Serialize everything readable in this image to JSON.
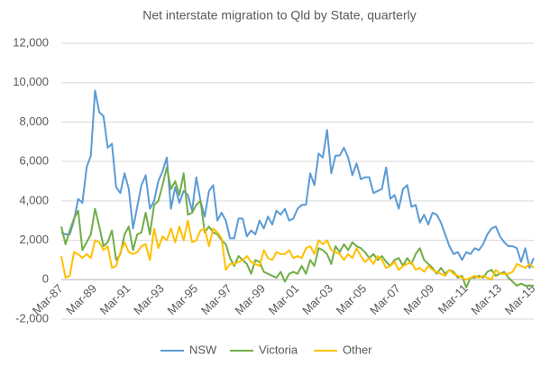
{
  "chart_data": {
    "type": "line",
    "title": "Net interstate migration to Qld by State, quarterly",
    "categories": [
      "Mar-87",
      null,
      null,
      null,
      null,
      null,
      null,
      null,
      "Mar-89",
      null,
      null,
      null,
      null,
      null,
      null,
      null,
      "Mar-91",
      null,
      null,
      null,
      null,
      null,
      null,
      null,
      "Mar-93",
      null,
      null,
      null,
      null,
      null,
      null,
      null,
      "Mar-95",
      null,
      null,
      null,
      null,
      null,
      null,
      null,
      "Mar-97",
      null,
      null,
      null,
      null,
      null,
      null,
      null,
      "Mar-99",
      null,
      null,
      null,
      null,
      null,
      null,
      null,
      "Mar-01",
      null,
      null,
      null,
      null,
      null,
      null,
      null,
      "Mar-03",
      null,
      null,
      null,
      null,
      null,
      null,
      null,
      "Mar-05",
      null,
      null,
      null,
      null,
      null,
      null,
      null,
      "Mar-07",
      null,
      null,
      null,
      null,
      null,
      null,
      null,
      "Mar-09",
      null,
      null,
      null,
      null,
      null,
      null,
      null,
      "Mar-11",
      null,
      null,
      null,
      null,
      null,
      null,
      null,
      "Mar-13",
      null,
      null,
      null,
      null,
      null,
      null,
      null,
      "Mar-15"
    ],
    "series": [
      {
        "name": "NSW",
        "color": "#5b9bd5",
        "values": [
          2400,
          2300,
          2300,
          3000,
          4100,
          3900,
          5700,
          6300,
          9600,
          8500,
          8300,
          6700,
          6900,
          4700,
          4400,
          5400,
          4600,
          2600,
          3700,
          4800,
          5300,
          3600,
          4000,
          5000,
          5500,
          6200,
          3600,
          4700,
          3900,
          4500,
          4300,
          3500,
          5200,
          4000,
          3200,
          4500,
          4800,
          3000,
          3400,
          3000,
          2100,
          2100,
          3100,
          3100,
          2200,
          2500,
          2300,
          3000,
          2600,
          3200,
          2800,
          3500,
          3300,
          3600,
          3000,
          3100,
          3600,
          3800,
          3800,
          5400,
          4800,
          6400,
          6200,
          7600,
          5400,
          6300,
          6300,
          6700,
          6200,
          5300,
          5900,
          5100,
          5200,
          5200,
          4400,
          4500,
          4600,
          5700,
          4100,
          4300,
          3600,
          4600,
          4800,
          3700,
          3800,
          2900,
          3300,
          2800,
          3400,
          3300,
          2900,
          2300,
          1700,
          1300,
          1400,
          1000,
          1400,
          1300,
          1600,
          1500,
          1800,
          2300,
          2600,
          2700,
          2200,
          1900,
          1700,
          1700,
          1600,
          900,
          1600,
          600,
          1100
        ]
      },
      {
        "name": "Victoria",
        "color": "#70ad47",
        "values": [
          2700,
          1800,
          2500,
          3100,
          3500,
          1500,
          1900,
          2300,
          3600,
          2700,
          1700,
          1900,
          2500,
          1000,
          1300,
          2300,
          2700,
          1500,
          2300,
          2400,
          3400,
          2300,
          3800,
          4000,
          4800,
          5700,
          4600,
          5000,
          4300,
          5400,
          3300,
          3400,
          3800,
          4000,
          2400,
          2700,
          2400,
          2300,
          2000,
          1800,
          1100,
          700,
          1200,
          1000,
          800,
          300,
          1000,
          900,
          400,
          300,
          200,
          100,
          400,
          -100,
          300,
          400,
          300,
          700,
          300,
          1000,
          700,
          1600,
          1500,
          1300,
          800,
          1700,
          1400,
          1800,
          1500,
          1900,
          1700,
          1600,
          1400,
          1100,
          1300,
          1000,
          1200,
          900,
          700,
          1000,
          1100,
          700,
          1100,
          800,
          1300,
          1600,
          1000,
          800,
          600,
          300,
          600,
          300,
          500,
          400,
          100,
          200,
          -400,
          100,
          100,
          200,
          100,
          400,
          500,
          200,
          300,
          400,
          100,
          -100,
          -300,
          -200,
          -300,
          -300,
          -300
        ]
      },
      {
        "name": "Other",
        "color": "#ffc000",
        "values": [
          1200,
          100,
          200,
          1400,
          1300,
          1100,
          1300,
          1100,
          2000,
          1900,
          1500,
          1700,
          600,
          700,
          1400,
          1900,
          1400,
          1300,
          1400,
          1700,
          1800,
          1000,
          2600,
          1600,
          2200,
          2000,
          2600,
          1900,
          2700,
          2000,
          3000,
          1900,
          2000,
          2500,
          2600,
          1700,
          2600,
          2400,
          2100,
          500,
          800,
          800,
          900,
          1000,
          1200,
          900,
          800,
          700,
          1500,
          1100,
          1000,
          1400,
          1300,
          1300,
          1500,
          1100,
          1200,
          1100,
          1600,
          1700,
          1300,
          2000,
          1800,
          2000,
          1500,
          1400,
          1300,
          1000,
          1300,
          1100,
          1600,
          1200,
          900,
          1100,
          800,
          1200,
          1000,
          600,
          700,
          900,
          500,
          700,
          800,
          900,
          500,
          600,
          400,
          700,
          500,
          400,
          300,
          200,
          500,
          300,
          200,
          100,
          0,
          100,
          200,
          100,
          200,
          100,
          0,
          500,
          300,
          300,
          300,
          400,
          800,
          700,
          600,
          800,
          600
        ]
      }
    ],
    "ylim": [
      -2000,
      12000
    ],
    "yticks": [
      {
        "value": -2000,
        "label": "-2,000"
      },
      0,
      {
        "value": 2000,
        "label": "2,000"
      },
      {
        "value": 4000,
        "label": "4,000"
      },
      {
        "value": 6000,
        "label": "6,000"
      },
      {
        "value": 8000,
        "label": "8,000"
      },
      {
        "value": 10000,
        "label": "10,000"
      },
      {
        "value": 12000,
        "label": "12,000"
      }
    ],
    "grid": true,
    "legend": "bottom"
  }
}
